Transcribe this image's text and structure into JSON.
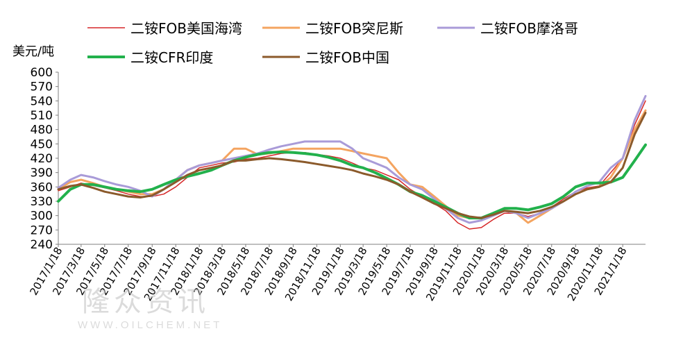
{
  "chart_data": {
    "type": "line",
    "title": "",
    "xlabel": "",
    "ylabel": "美元/吨",
    "ylim": [
      240,
      600
    ],
    "yticks": [
      240,
      270,
      300,
      330,
      360,
      390,
      420,
      450,
      480,
      510,
      540,
      570,
      600
    ],
    "x_tick_labels": [
      "2017/1/18",
      "2017/3/18",
      "2017/5/18",
      "2017/7/18",
      "2017/9/18",
      "2017/11/18",
      "2018/1/18",
      "2018/3/18",
      "2018/5/18",
      "2018/7/18",
      "2018/9/18",
      "2018/11/18",
      "2019/1/18",
      "2019/3/18",
      "2019/5/18",
      "2019/7/18",
      "2019/9/18",
      "2019/11/18",
      "2020/1/18",
      "2020/3/18",
      "2020/5/18",
      "2020/7/18",
      "2020/9/18",
      "2020/11/18",
      "2021/1/18"
    ],
    "x_range": [
      "2017/1/18",
      "2021/3/18"
    ],
    "grid": false,
    "legend_position": "top",
    "series": [
      {
        "name": "二铵FOB美国海湾",
        "color": "#d62728",
        "width": 1.5,
        "points": [
          [
            "2017/1/18",
            352
          ],
          [
            "2017/2/18",
            360
          ],
          [
            "2017/3/18",
            368
          ],
          [
            "2017/4/18",
            363
          ],
          [
            "2017/5/18",
            358
          ],
          [
            "2017/6/18",
            352
          ],
          [
            "2017/7/18",
            345
          ],
          [
            "2017/8/18",
            340
          ],
          [
            "2017/9/18",
            340
          ],
          [
            "2017/10/18",
            345
          ],
          [
            "2017/11/18",
            360
          ],
          [
            "2017/12/18",
            380
          ],
          [
            "2018/1/18",
            400
          ],
          [
            "2018/2/18",
            405
          ],
          [
            "2018/3/18",
            410
          ],
          [
            "2018/4/18",
            412
          ],
          [
            "2018/5/18",
            418
          ],
          [
            "2018/6/18",
            420
          ],
          [
            "2018/7/18",
            425
          ],
          [
            "2018/8/18",
            430
          ],
          [
            "2018/9/18",
            432
          ],
          [
            "2018/10/18",
            432
          ],
          [
            "2018/11/18",
            428
          ],
          [
            "2018/12/18",
            425
          ],
          [
            "2019/1/18",
            420
          ],
          [
            "2019/2/18",
            410
          ],
          [
            "2019/3/18",
            400
          ],
          [
            "2019/4/18",
            395
          ],
          [
            "2019/5/18",
            385
          ],
          [
            "2019/6/18",
            375
          ],
          [
            "2019/7/18",
            355
          ],
          [
            "2019/8/18",
            340
          ],
          [
            "2019/9/18",
            325
          ],
          [
            "2019/10/18",
            310
          ],
          [
            "2019/11/18",
            285
          ],
          [
            "2019/12/18",
            272
          ],
          [
            "2020/1/18",
            275
          ],
          [
            "2020/2/18",
            292
          ],
          [
            "2020/3/18",
            305
          ],
          [
            "2020/4/18",
            305
          ],
          [
            "2020/5/18",
            298
          ],
          [
            "2020/6/18",
            305
          ],
          [
            "2020/7/18",
            318
          ],
          [
            "2020/8/18",
            335
          ],
          [
            "2020/9/18",
            350
          ],
          [
            "2020/10/18",
            358
          ],
          [
            "2020/11/18",
            362
          ],
          [
            "2020/12/18",
            390
          ],
          [
            "2021/1/18",
            420
          ],
          [
            "2021/2/18",
            490
          ],
          [
            "2021/3/18",
            540
          ]
        ]
      },
      {
        "name": "二铵FOB突尼斯",
        "color": "#f4a460",
        "width": 3,
        "points": [
          [
            "2017/1/18",
            355
          ],
          [
            "2017/2/18",
            370
          ],
          [
            "2017/3/18",
            375
          ],
          [
            "2017/4/18",
            368
          ],
          [
            "2017/5/18",
            360
          ],
          [
            "2017/6/18",
            355
          ],
          [
            "2017/7/18",
            350
          ],
          [
            "2017/8/18",
            345
          ],
          [
            "2017/9/18",
            345
          ],
          [
            "2017/10/18",
            355
          ],
          [
            "2017/11/18",
            375
          ],
          [
            "2017/12/18",
            395
          ],
          [
            "2018/1/18",
            405
          ],
          [
            "2018/2/18",
            410
          ],
          [
            "2018/3/18",
            415
          ],
          [
            "2018/4/18",
            440
          ],
          [
            "2018/5/18",
            440
          ],
          [
            "2018/6/18",
            428
          ],
          [
            "2018/7/18",
            430
          ],
          [
            "2018/8/18",
            435
          ],
          [
            "2018/9/18",
            440
          ],
          [
            "2018/10/18",
            440
          ],
          [
            "2018/11/18",
            440
          ],
          [
            "2018/12/18",
            440
          ],
          [
            "2019/1/18",
            440
          ],
          [
            "2019/2/18",
            435
          ],
          [
            "2019/3/18",
            430
          ],
          [
            "2019/4/18",
            425
          ],
          [
            "2019/5/18",
            420
          ],
          [
            "2019/6/18",
            390
          ],
          [
            "2019/7/18",
            365
          ],
          [
            "2019/8/18",
            360
          ],
          [
            "2019/9/18",
            340
          ],
          [
            "2019/10/18",
            320
          ],
          [
            "2019/11/18",
            300
          ],
          [
            "2019/12/18",
            295
          ],
          [
            "2020/1/18",
            295
          ],
          [
            "2020/2/18",
            305
          ],
          [
            "2020/3/18",
            310
          ],
          [
            "2020/4/18",
            305
          ],
          [
            "2020/5/18",
            285
          ],
          [
            "2020/6/18",
            300
          ],
          [
            "2020/7/18",
            315
          ],
          [
            "2020/8/18",
            330
          ],
          [
            "2020/9/18",
            345
          ],
          [
            "2020/10/18",
            355
          ],
          [
            "2020/11/18",
            360
          ],
          [
            "2020/12/18",
            380
          ],
          [
            "2021/1/18",
            420
          ],
          [
            "2021/2/18",
            480
          ],
          [
            "2021/3/18",
            520
          ]
        ]
      },
      {
        "name": "二铵FOB摩洛哥",
        "color": "#a99bd8",
        "width": 3,
        "points": [
          [
            "2017/1/18",
            358
          ],
          [
            "2017/2/18",
            375
          ],
          [
            "2017/3/18",
            385
          ],
          [
            "2017/4/18",
            380
          ],
          [
            "2017/5/18",
            372
          ],
          [
            "2017/6/18",
            365
          ],
          [
            "2017/7/18",
            360
          ],
          [
            "2017/8/18",
            352
          ],
          [
            "2017/9/18",
            340
          ],
          [
            "2017/10/18",
            355
          ],
          [
            "2017/11/18",
            375
          ],
          [
            "2017/12/18",
            395
          ],
          [
            "2018/1/18",
            405
          ],
          [
            "2018/2/18",
            410
          ],
          [
            "2018/3/18",
            415
          ],
          [
            "2018/4/18",
            420
          ],
          [
            "2018/5/18",
            425
          ],
          [
            "2018/6/18",
            430
          ],
          [
            "2018/7/18",
            438
          ],
          [
            "2018/8/18",
            445
          ],
          [
            "2018/9/18",
            450
          ],
          [
            "2018/10/18",
            455
          ],
          [
            "2018/11/18",
            455
          ],
          [
            "2018/12/18",
            455
          ],
          [
            "2019/1/18",
            455
          ],
          [
            "2019/2/18",
            440
          ],
          [
            "2019/3/18",
            420
          ],
          [
            "2019/4/18",
            410
          ],
          [
            "2019/5/18",
            400
          ],
          [
            "2019/6/18",
            380
          ],
          [
            "2019/7/18",
            365
          ],
          [
            "2019/8/18",
            355
          ],
          [
            "2019/9/18",
            335
          ],
          [
            "2019/10/18",
            315
          ],
          [
            "2019/11/18",
            295
          ],
          [
            "2019/12/18",
            285
          ],
          [
            "2020/1/18",
            290
          ],
          [
            "2020/2/18",
            300
          ],
          [
            "2020/3/18",
            310
          ],
          [
            "2020/4/18",
            305
          ],
          [
            "2020/5/18",
            295
          ],
          [
            "2020/6/18",
            305
          ],
          [
            "2020/7/18",
            315
          ],
          [
            "2020/8/18",
            330
          ],
          [
            "2020/9/18",
            350
          ],
          [
            "2020/10/18",
            362
          ],
          [
            "2020/11/18",
            370
          ],
          [
            "2020/12/18",
            400
          ],
          [
            "2021/1/18",
            420
          ],
          [
            "2021/2/18",
            500
          ],
          [
            "2021/3/18",
            550
          ]
        ]
      },
      {
        "name": "二铵CFR印度",
        "color": "#22b14c",
        "width": 4,
        "points": [
          [
            "2017/1/18",
            330
          ],
          [
            "2017/2/18",
            355
          ],
          [
            "2017/3/18",
            365
          ],
          [
            "2017/4/18",
            365
          ],
          [
            "2017/5/18",
            360
          ],
          [
            "2017/6/18",
            355
          ],
          [
            "2017/7/18",
            352
          ],
          [
            "2017/8/18",
            350
          ],
          [
            "2017/9/18",
            355
          ],
          [
            "2017/10/18",
            365
          ],
          [
            "2017/11/18",
            375
          ],
          [
            "2017/12/18",
            382
          ],
          [
            "2018/1/18",
            388
          ],
          [
            "2018/2/18",
            395
          ],
          [
            "2018/3/18",
            405
          ],
          [
            "2018/4/18",
            415
          ],
          [
            "2018/5/18",
            422
          ],
          [
            "2018/6/18",
            428
          ],
          [
            "2018/7/18",
            432
          ],
          [
            "2018/8/18",
            433
          ],
          [
            "2018/9/18",
            432
          ],
          [
            "2018/10/18",
            430
          ],
          [
            "2018/11/18",
            427
          ],
          [
            "2018/12/18",
            422
          ],
          [
            "2019/1/18",
            415
          ],
          [
            "2019/2/18",
            405
          ],
          [
            "2019/3/18",
            400
          ],
          [
            "2019/4/18",
            390
          ],
          [
            "2019/5/18",
            378
          ],
          [
            "2019/6/18",
            365
          ],
          [
            "2019/7/18",
            350
          ],
          [
            "2019/8/18",
            342
          ],
          [
            "2019/9/18",
            330
          ],
          [
            "2019/10/18",
            318
          ],
          [
            "2019/11/18",
            305
          ],
          [
            "2019/12/18",
            295
          ],
          [
            "2020/1/18",
            295
          ],
          [
            "2020/2/18",
            305
          ],
          [
            "2020/3/18",
            315
          ],
          [
            "2020/4/18",
            315
          ],
          [
            "2020/5/18",
            312
          ],
          [
            "2020/6/18",
            318
          ],
          [
            "2020/7/18",
            325
          ],
          [
            "2020/8/18",
            340
          ],
          [
            "2020/9/18",
            360
          ],
          [
            "2020/10/18",
            368
          ],
          [
            "2020/11/18",
            368
          ],
          [
            "2020/12/18",
            370
          ],
          [
            "2021/1/18",
            380
          ],
          [
            "2021/2/18",
            415
          ],
          [
            "2021/3/18",
            448
          ]
        ]
      },
      {
        "name": "二铵FOB中国",
        "color": "#8b5a2b",
        "width": 3,
        "points": [
          [
            "2017/1/18",
            355
          ],
          [
            "2017/2/18",
            362
          ],
          [
            "2017/3/18",
            365
          ],
          [
            "2017/4/18",
            358
          ],
          [
            "2017/5/18",
            350
          ],
          [
            "2017/6/18",
            345
          ],
          [
            "2017/7/18",
            340
          ],
          [
            "2017/8/18",
            338
          ],
          [
            "2017/9/18",
            342
          ],
          [
            "2017/10/18",
            355
          ],
          [
            "2017/11/18",
            370
          ],
          [
            "2017/12/18",
            385
          ],
          [
            "2018/1/18",
            395
          ],
          [
            "2018/2/18",
            400
          ],
          [
            "2018/3/18",
            405
          ],
          [
            "2018/4/18",
            415
          ],
          [
            "2018/5/18",
            415
          ],
          [
            "2018/6/18",
            418
          ],
          [
            "2018/7/18",
            420
          ],
          [
            "2018/8/18",
            418
          ],
          [
            "2018/9/18",
            415
          ],
          [
            "2018/10/18",
            412
          ],
          [
            "2018/11/18",
            408
          ],
          [
            "2018/12/18",
            404
          ],
          [
            "2019/1/18",
            400
          ],
          [
            "2019/2/18",
            395
          ],
          [
            "2019/3/18",
            388
          ],
          [
            "2019/4/18",
            382
          ],
          [
            "2019/5/18",
            375
          ],
          [
            "2019/6/18",
            365
          ],
          [
            "2019/7/18",
            350
          ],
          [
            "2019/8/18",
            338
          ],
          [
            "2019/9/18",
            325
          ],
          [
            "2019/10/18",
            315
          ],
          [
            "2019/11/18",
            305
          ],
          [
            "2019/12/18",
            298
          ],
          [
            "2020/1/18",
            295
          ],
          [
            "2020/2/18",
            302
          ],
          [
            "2020/3/18",
            310
          ],
          [
            "2020/4/18",
            308
          ],
          [
            "2020/5/18",
            305
          ],
          [
            "2020/6/18",
            310
          ],
          [
            "2020/7/18",
            318
          ],
          [
            "2020/8/18",
            330
          ],
          [
            "2020/9/18",
            345
          ],
          [
            "2020/10/18",
            355
          ],
          [
            "2020/11/18",
            360
          ],
          [
            "2020/12/18",
            370
          ],
          [
            "2021/1/18",
            400
          ],
          [
            "2021/2/18",
            470
          ],
          [
            "2021/3/18",
            515
          ]
        ]
      }
    ],
    "legend_rows": [
      [
        0,
        1,
        2
      ],
      [
        3,
        4
      ]
    ]
  },
  "watermark": {
    "line1": "隆众资讯",
    "line2": "WWW.OILCHEM.NET"
  }
}
